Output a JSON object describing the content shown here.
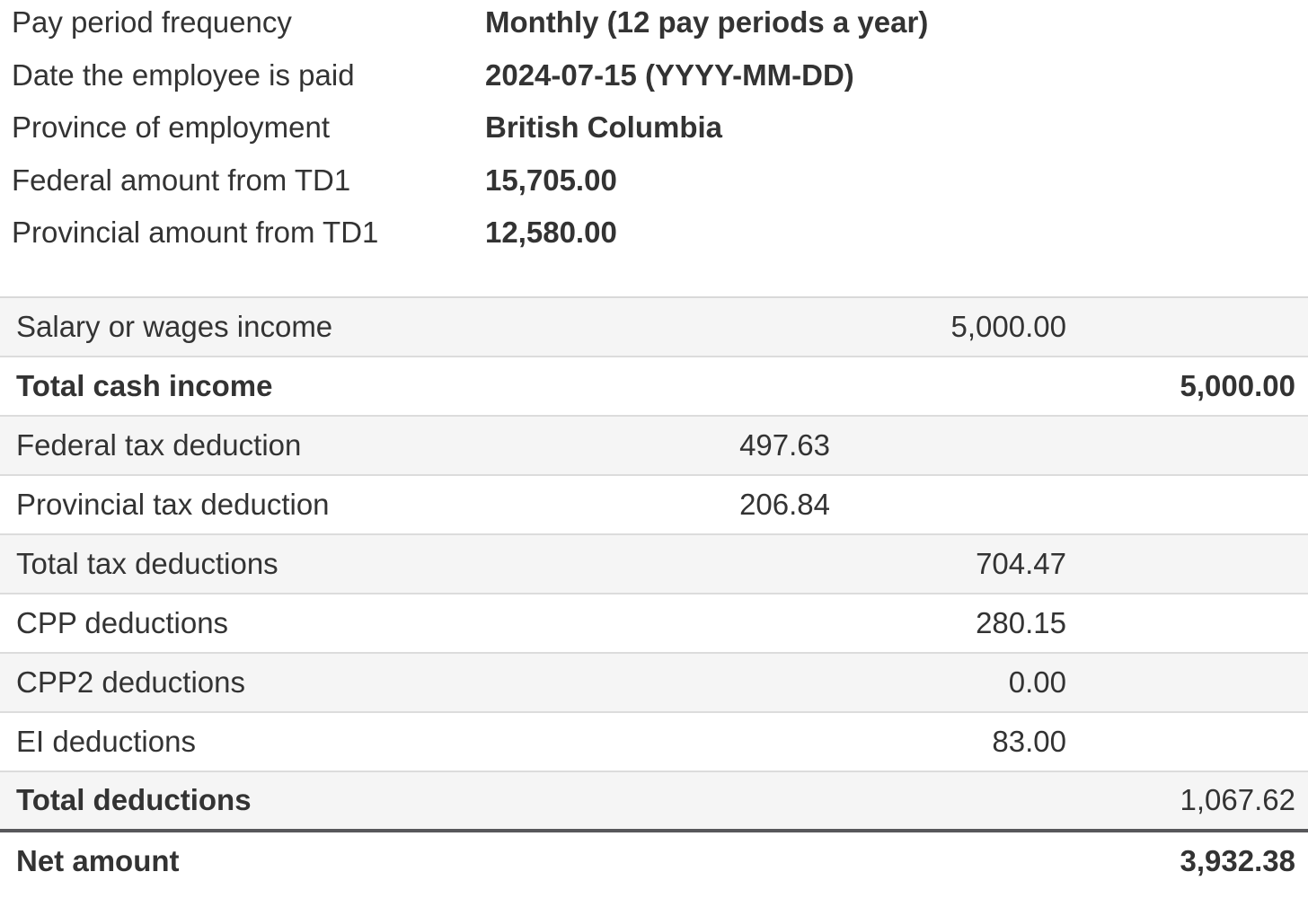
{
  "summary": {
    "rows": [
      {
        "label": "Pay period frequency",
        "value": "Monthly (12 pay periods a year)"
      },
      {
        "label": "Date the employee is paid",
        "value": "2024-07-15 (YYYY-MM-DD)"
      },
      {
        "label": "Province of employment",
        "value": "British Columbia"
      },
      {
        "label": "Federal amount from TD1",
        "value": "15,705.00"
      },
      {
        "label": "Provincial amount from TD1",
        "value": "12,580.00"
      }
    ]
  },
  "table": {
    "rows": [
      {
        "label": "Salary or wages income",
        "value": "5,000.00",
        "column": "subtotal"
      },
      {
        "label": "Total cash income",
        "value": "5,000.00",
        "column": "total"
      },
      {
        "label": "Federal tax deduction",
        "value": "497.63",
        "column": "sub"
      },
      {
        "label": "Provincial tax deduction",
        "value": "206.84",
        "column": "sub"
      },
      {
        "label": "Total tax deductions",
        "value": "704.47",
        "column": "subtotal"
      },
      {
        "label": "CPP deductions",
        "value": "280.15",
        "column": "subtotal"
      },
      {
        "label": "CPP2 deductions",
        "value": "0.00",
        "column": "subtotal"
      },
      {
        "label": "EI deductions",
        "value": "83.00",
        "column": "subtotal"
      },
      {
        "label": "Total deductions",
        "value": "1,067.62",
        "column": "total"
      },
      {
        "label": "Net amount",
        "value": "3,932.38",
        "column": "total"
      }
    ]
  },
  "colors": {
    "text": "#333333",
    "row_shade": "#f5f5f5",
    "divider": "#dcdcdc",
    "strong_divider": "#58585b",
    "bg": "#ffffff"
  }
}
